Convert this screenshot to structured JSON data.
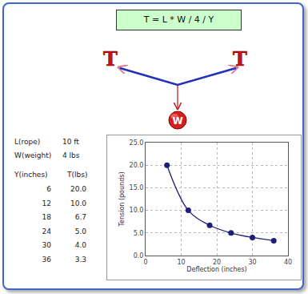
{
  "chart_data": {
    "type": "line",
    "x": [
      6,
      12,
      18,
      24,
      30,
      36
    ],
    "values": [
      20,
      10,
      6.7,
      5,
      4,
      3.3
    ],
    "color": "#1f1f7a",
    "marker": "circle",
    "line_style": "smooth",
    "xlabel": "Deflection (inches)",
    "ylabel": "Tension (pounds)",
    "xlim": [
      0,
      40
    ],
    "xticks": [
      0,
      10,
      20,
      30,
      40
    ],
    "ylim": [
      0,
      25
    ],
    "yticks": [
      {
        "value": 0,
        "label": "0.0"
      },
      {
        "value": 5,
        "label": "5.0"
      },
      {
        "value": 10,
        "label": "10.0"
      },
      {
        "value": 15,
        "label": "15.0"
      },
      {
        "value": 20,
        "label": "20.0"
      },
      {
        "value": 25,
        "label": "25.0"
      }
    ],
    "grid": true
  },
  "formula": "T = L * W / 4 / Y",
  "diagram": {
    "labels": [
      "T",
      "T",
      "W"
    ]
  },
  "parameters": [
    {
      "label": "L(rope)",
      "value": "10 ft"
    },
    {
      "label": "W(weight)",
      "value": "4 lbs"
    }
  ],
  "table": {
    "header": [
      "Y(inches)",
      "T(lbs)"
    ],
    "rows": [
      [
        "6",
        "20.0"
      ],
      [
        "12",
        "10.0"
      ],
      [
        "18",
        "6.7"
      ],
      [
        "24",
        "5.0"
      ],
      [
        "30",
        "4.0"
      ],
      [
        "36",
        "3.3"
      ]
    ]
  }
}
